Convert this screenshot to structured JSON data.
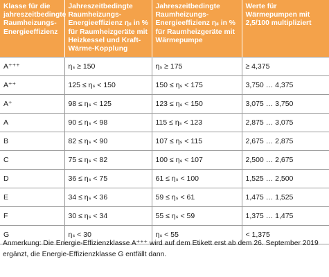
{
  "table": {
    "headers": [
      "Klasse für die jahreszeitbedingte Raumheizungs-Energieeffizienz",
      "Jahreszeitbedingte Raumheizungs-Energieeffizienz ηₛ in % für Raumheizgeräte mit Heizkessel und Kraft-Wärme-Kopplung",
      "Jahreszeitbedingte Raumheizungs-Energieeffizienz ηₛ in % für Raumheizgeräte mit Wärmepumpe",
      "Werte für Wärmepumpen mit 2,5/100 multipliziert"
    ],
    "rows": [
      [
        "A⁺⁺⁺",
        "ηₛ ≥ 150",
        "ηₛ ≥ 175",
        "≥ 4,375"
      ],
      [
        "A⁺⁺",
        "125 ≤ ηₛ < 150",
        "150 ≤ ηₛ < 175",
        "3,750 … 4,375"
      ],
      [
        "A⁺",
        "98 ≤ ηₛ < 125",
        "123 ≤ ηₛ < 150",
        "3,075 … 3,750"
      ],
      [
        "A",
        "90 ≤ ηₛ < 98",
        "115 ≤ ηₛ < 123",
        "2,875 … 3,075"
      ],
      [
        "B",
        "82 ≤ ηₛ < 90",
        "107 ≤ ηₛ < 115",
        "2,675 … 2,875"
      ],
      [
        "C",
        "75 ≤ ηₛ < 82",
        "100 ≤ ηₛ < 107",
        "2,500 … 2,675"
      ],
      [
        "D",
        "36 ≤ ηₛ < 75",
        "61 ≤ ηₛ < 100",
        "1,525 … 2,500"
      ],
      [
        "E",
        "34 ≤ ηₛ < 36",
        "59 ≤ ηₛ < 61",
        "1,475 … 1,525"
      ],
      [
        "F",
        "30 ≤ ηₛ < 34",
        "55 ≤ ηₛ < 59",
        "1,375 … 1,475"
      ],
      [
        "G",
        "ηₛ < 30",
        "ηₛ < 55",
        "< 1,375"
      ]
    ]
  },
  "note": "Anmerkung: Die Energie-Effizienzklasse A⁺⁺⁺ wird auf dem Etikett erst ab dem 26. September 2019 ergänzt, die Energie-Effizienzklasse G entfällt dann.",
  "colors": {
    "header_bg": "#f4a24a",
    "header_text": "#ffffff",
    "grid": "#9a9a9a"
  }
}
